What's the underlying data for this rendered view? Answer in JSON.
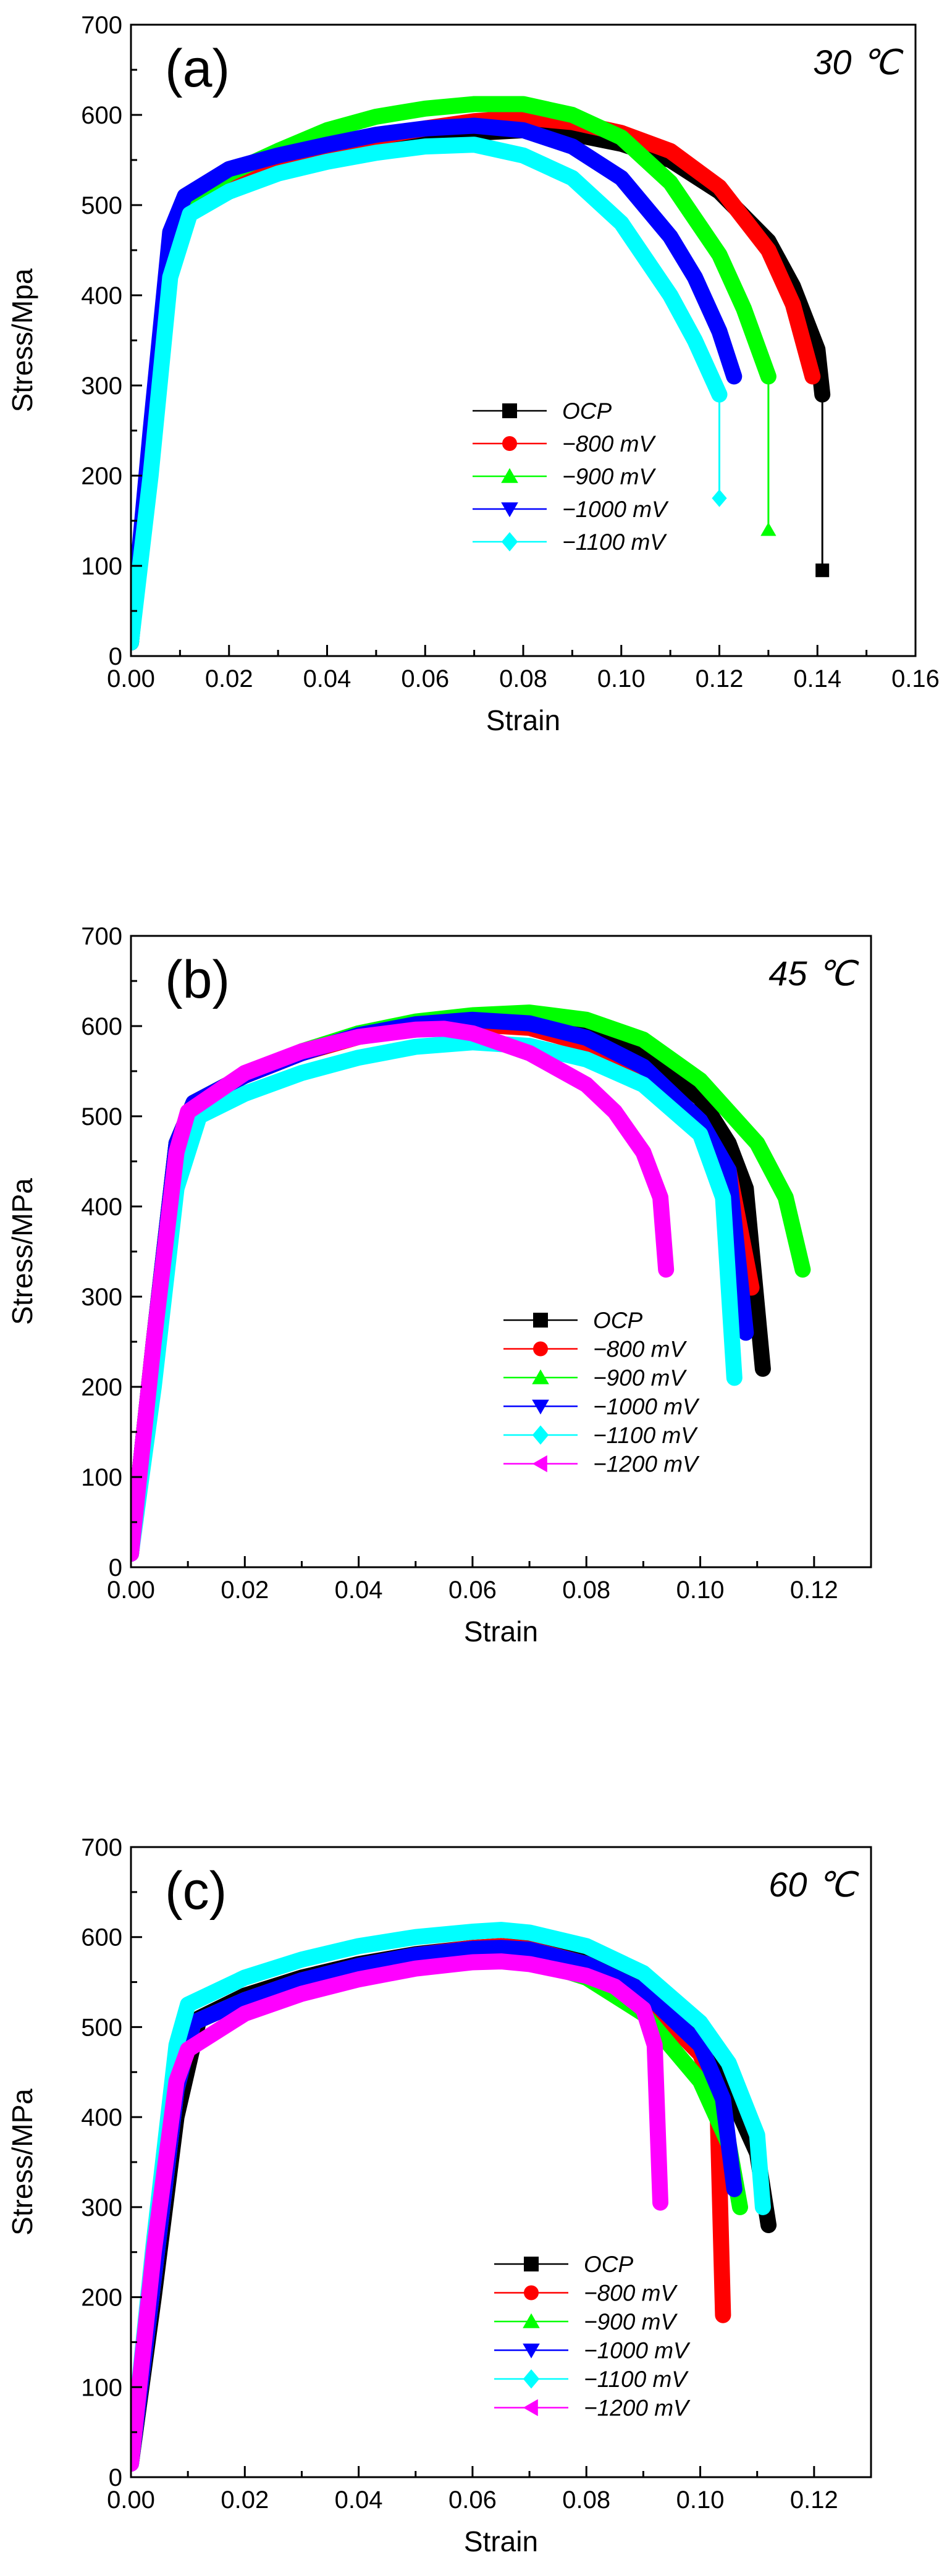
{
  "chart_data": [
    {
      "type": "line",
      "panel_label": "(a)",
      "temperature_label": "30 ℃",
      "xlabel": "Strain",
      "ylabel": "Stress/Mpa",
      "xlim": [
        0,
        0.16
      ],
      "ylim": [
        0,
        700
      ],
      "xticks": [
        0,
        0.02,
        0.04,
        0.06,
        0.08,
        0.1,
        0.12,
        0.14,
        0.16
      ],
      "xtick_labels": [
        "0.00",
        "0.02",
        "0.04",
        "0.06",
        "0.08",
        "0.10",
        "0.12",
        "0.14",
        "0.16"
      ],
      "yticks": [
        0,
        100,
        200,
        300,
        400,
        500,
        600,
        700
      ],
      "ytick_labels": [
        "0",
        "100",
        "200",
        "300",
        "400",
        "500",
        "600",
        "700"
      ],
      "legend_position": "center",
      "series": [
        {
          "name": "OCP",
          "color": "#000000",
          "marker": "square",
          "x": [
            0,
            0.004,
            0.008,
            0.011,
            0.02,
            0.03,
            0.04,
            0.05,
            0.06,
            0.07,
            0.08,
            0.09,
            0.1,
            0.11,
            0.12,
            0.13,
            0.135,
            0.14,
            0.141
          ],
          "y": [
            15,
            220,
            430,
            490,
            515,
            537,
            553,
            566,
            575,
            580,
            583,
            579,
            568,
            550,
            515,
            460,
            410,
            340,
            290
          ],
          "fracture": {
            "x": 0.141,
            "y": [
              290,
              95
            ]
          }
        },
        {
          "name": "−800 mV",
          "color": "#ff0000",
          "marker": "circle",
          "x": [
            0,
            0.004,
            0.008,
            0.011,
            0.02,
            0.03,
            0.04,
            0.05,
            0.06,
            0.07,
            0.08,
            0.09,
            0.1,
            0.11,
            0.12,
            0.13,
            0.135,
            0.139
          ],
          "y": [
            15,
            240,
            460,
            505,
            525,
            545,
            562,
            575,
            585,
            593,
            597,
            592,
            580,
            560,
            520,
            450,
            390,
            310
          ]
        },
        {
          "name": "−900 mV",
          "color": "#00ff00",
          "marker": "triangle-up",
          "x": [
            0,
            0.004,
            0.008,
            0.011,
            0.02,
            0.03,
            0.04,
            0.05,
            0.06,
            0.07,
            0.08,
            0.09,
            0.1,
            0.11,
            0.12,
            0.125,
            0.13
          ],
          "y": [
            15,
            240,
            460,
            505,
            535,
            560,
            583,
            598,
            607,
            612,
            612,
            600,
            575,
            525,
            445,
            385,
            310
          ],
          "fracture": {
            "x": 0.13,
            "y": [
              310,
              140
            ]
          }
        },
        {
          "name": "−1000 mV",
          "color": "#0000ff",
          "marker": "triangle-down",
          "x": [
            0,
            0.004,
            0.008,
            0.011,
            0.02,
            0.03,
            0.04,
            0.05,
            0.06,
            0.07,
            0.08,
            0.09,
            0.1,
            0.11,
            0.115,
            0.12,
            0.123
          ],
          "y": [
            15,
            250,
            470,
            510,
            540,
            555,
            567,
            578,
            585,
            588,
            583,
            565,
            530,
            465,
            420,
            360,
            310
          ]
        },
        {
          "name": "−1100 mV",
          "color": "#00ffff",
          "marker": "diamond",
          "x": [
            0,
            0.004,
            0.008,
            0.012,
            0.02,
            0.03,
            0.04,
            0.05,
            0.06,
            0.07,
            0.08,
            0.09,
            0.1,
            0.11,
            0.115,
            0.12
          ],
          "y": [
            15,
            200,
            420,
            490,
            515,
            535,
            548,
            558,
            565,
            567,
            555,
            530,
            480,
            400,
            350,
            290
          ],
          "fracture": {
            "x": 0.12,
            "y": [
              290,
              175
            ]
          }
        }
      ]
    },
    {
      "type": "line",
      "panel_label": "(b)",
      "temperature_label": "45 ℃",
      "xlabel": "Strain",
      "ylabel": "Stress/MPa",
      "xlim": [
        0,
        0.13
      ],
      "ylim": [
        0,
        700
      ],
      "xticks": [
        0,
        0.02,
        0.04,
        0.06,
        0.08,
        0.1,
        0.12
      ],
      "xtick_labels": [
        "0.00",
        "0.02",
        "0.04",
        "0.06",
        "0.08",
        "0.10",
        "0.12"
      ],
      "yticks": [
        0,
        100,
        200,
        300,
        400,
        500,
        600,
        700
      ],
      "ytick_labels": [
        "0",
        "100",
        "200",
        "300",
        "400",
        "500",
        "600",
        "700"
      ],
      "legend_position": "center",
      "series": [
        {
          "name": "OCP",
          "color": "#000000",
          "marker": "square",
          "x": [
            0,
            0.004,
            0.008,
            0.011,
            0.02,
            0.03,
            0.04,
            0.05,
            0.06,
            0.07,
            0.08,
            0.09,
            0.1,
            0.105,
            0.108,
            0.111
          ],
          "y": [
            15,
            250,
            470,
            515,
            545,
            570,
            590,
            602,
            608,
            608,
            598,
            572,
            520,
            470,
            420,
            220
          ]
        },
        {
          "name": "−800 mV",
          "color": "#ff0000",
          "marker": "circle",
          "x": [
            0,
            0.004,
            0.008,
            0.011,
            0.02,
            0.03,
            0.04,
            0.05,
            0.06,
            0.07,
            0.08,
            0.09,
            0.1,
            0.105,
            0.109
          ],
          "y": [
            15,
            250,
            470,
            515,
            545,
            570,
            588,
            598,
            602,
            598,
            580,
            545,
            490,
            440,
            310
          ]
        },
        {
          "name": "−900 mV",
          "color": "#00ff00",
          "marker": "triangle-up",
          "x": [
            0,
            0.004,
            0.008,
            0.011,
            0.02,
            0.03,
            0.04,
            0.05,
            0.06,
            0.07,
            0.08,
            0.09,
            0.1,
            0.11,
            0.115,
            0.118
          ],
          "y": [
            15,
            250,
            470,
            515,
            545,
            572,
            592,
            605,
            612,
            615,
            607,
            585,
            540,
            470,
            410,
            330
          ]
        },
        {
          "name": "−1000 mV",
          "color": "#0000ff",
          "marker": "triangle-down",
          "x": [
            0,
            0.004,
            0.008,
            0.011,
            0.02,
            0.03,
            0.04,
            0.05,
            0.06,
            0.07,
            0.08,
            0.09,
            0.1,
            0.105,
            0.108
          ],
          "y": [
            15,
            250,
            470,
            515,
            545,
            570,
            590,
            602,
            607,
            603,
            587,
            555,
            495,
            440,
            260
          ]
        },
        {
          "name": "−1100 mV",
          "color": "#00ffff",
          "marker": "diamond",
          "x": [
            0,
            0.004,
            0.008,
            0.012,
            0.02,
            0.03,
            0.04,
            0.05,
            0.06,
            0.07,
            0.08,
            0.09,
            0.1,
            0.104,
            0.106
          ],
          "y": [
            15,
            200,
            420,
            500,
            525,
            548,
            565,
            577,
            582,
            578,
            563,
            535,
            480,
            410,
            210
          ]
        },
        {
          "name": "−1200 mV",
          "color": "#ff00ff",
          "marker": "triangle-left",
          "x": [
            0,
            0.004,
            0.008,
            0.01,
            0.02,
            0.03,
            0.04,
            0.05,
            0.055,
            0.06,
            0.07,
            0.08,
            0.085,
            0.09,
            0.093,
            0.094
          ],
          "y": [
            15,
            250,
            460,
            505,
            548,
            572,
            588,
            596,
            597,
            592,
            570,
            535,
            505,
            460,
            410,
            330
          ]
        }
      ]
    },
    {
      "type": "line",
      "panel_label": "(c)",
      "temperature_label": "60 ℃",
      "xlabel": "Strain",
      "ylabel": "Stress/MPa",
      "xlim": [
        0,
        0.13
      ],
      "ylim": [
        0,
        700
      ],
      "xticks": [
        0,
        0.02,
        0.04,
        0.06,
        0.08,
        0.1,
        0.12
      ],
      "xtick_labels": [
        "0.00",
        "0.02",
        "0.04",
        "0.06",
        "0.08",
        "0.10",
        "0.12"
      ],
      "yticks": [
        0,
        100,
        200,
        300,
        400,
        500,
        600,
        700
      ],
      "ytick_labels": [
        "0",
        "100",
        "200",
        "300",
        "400",
        "500",
        "600",
        "700"
      ],
      "legend_position": "bottom-center",
      "series": [
        {
          "name": "OCP",
          "color": "#000000",
          "marker": "square",
          "x": [
            0,
            0.004,
            0.008,
            0.012,
            0.02,
            0.03,
            0.04,
            0.05,
            0.06,
            0.065,
            0.07,
            0.08,
            0.09,
            0.1,
            0.105,
            0.11,
            0.112
          ],
          "y": [
            15,
            200,
            400,
            510,
            535,
            555,
            570,
            581,
            588,
            590,
            588,
            575,
            545,
            480,
            430,
            360,
            280
          ]
        },
        {
          "name": "−800 mV",
          "color": "#ff0000",
          "marker": "circle",
          "x": [
            0,
            0.004,
            0.008,
            0.011,
            0.02,
            0.03,
            0.04,
            0.05,
            0.06,
            0.065,
            0.07,
            0.08,
            0.09,
            0.1,
            0.103,
            0.104
          ],
          "y": [
            15,
            220,
            430,
            505,
            530,
            552,
            568,
            580,
            588,
            590,
            587,
            570,
            535,
            470,
            420,
            180
          ]
        },
        {
          "name": "−900 mV",
          "color": "#00ff00",
          "marker": "triangle-up",
          "x": [
            0,
            0.004,
            0.008,
            0.011,
            0.02,
            0.03,
            0.04,
            0.05,
            0.06,
            0.065,
            0.07,
            0.08,
            0.09,
            0.1,
            0.105,
            0.107
          ],
          "y": [
            15,
            220,
            430,
            505,
            530,
            550,
            565,
            575,
            580,
            580,
            575,
            555,
            515,
            440,
            370,
            300
          ]
        },
        {
          "name": "−1000 mV",
          "color": "#0000ff",
          "marker": "triangle-down",
          "x": [
            0,
            0.004,
            0.008,
            0.011,
            0.02,
            0.03,
            0.04,
            0.05,
            0.06,
            0.065,
            0.07,
            0.08,
            0.09,
            0.1,
            0.104,
            0.106
          ],
          "y": [
            15,
            220,
            430,
            505,
            530,
            552,
            568,
            580,
            587,
            588,
            586,
            570,
            540,
            480,
            420,
            320
          ]
        },
        {
          "name": "−1100 mV",
          "color": "#00ffff",
          "marker": "diamond",
          "x": [
            0,
            0.004,
            0.008,
            0.01,
            0.02,
            0.03,
            0.04,
            0.05,
            0.06,
            0.065,
            0.07,
            0.08,
            0.09,
            0.1,
            0.105,
            0.11,
            0.111
          ],
          "y": [
            15,
            260,
            480,
            525,
            555,
            575,
            590,
            600,
            606,
            608,
            605,
            590,
            560,
            505,
            460,
            380,
            300
          ]
        },
        {
          "name": "−1200 mV",
          "color": "#ff00ff",
          "marker": "triangle-left",
          "x": [
            0,
            0.004,
            0.008,
            0.01,
            0.02,
            0.03,
            0.04,
            0.05,
            0.06,
            0.065,
            0.07,
            0.08,
            0.085,
            0.09,
            0.092,
            0.093
          ],
          "y": [
            15,
            250,
            440,
            475,
            515,
            537,
            553,
            565,
            572,
            573,
            570,
            557,
            545,
            520,
            480,
            305
          ]
        }
      ]
    }
  ]
}
